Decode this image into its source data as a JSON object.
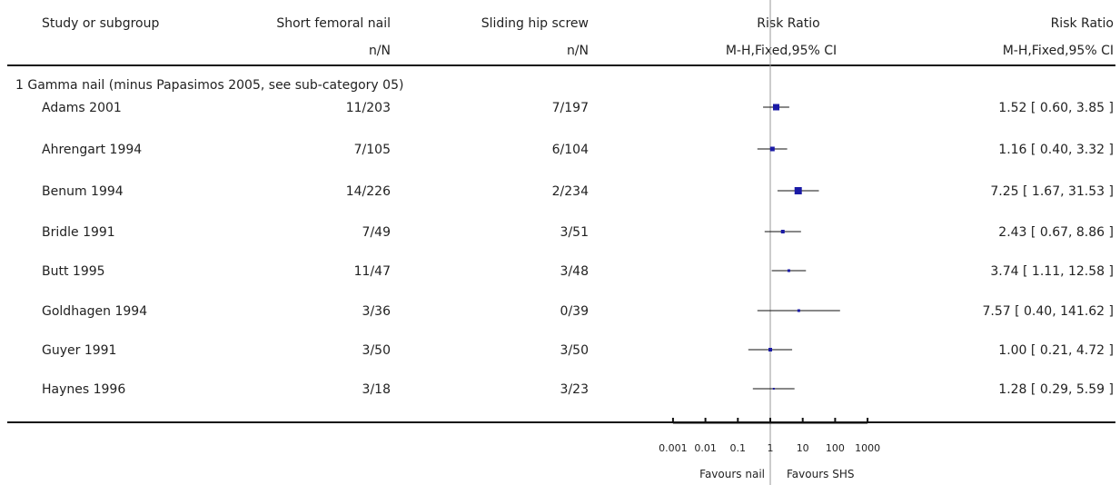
{
  "header": {
    "study": "Study or subgroup",
    "col1": "Short femoral nail",
    "col2": "Sliding hip screw",
    "col1_sub": "n/N",
    "col2_sub": "n/N",
    "plot_title": "Risk Ratio",
    "plot_sub": "M-H,Fixed,95% CI",
    "rr_title": "Risk Ratio",
    "rr_sub": "M-H,Fixed,95% CI"
  },
  "subgroup": "1 Gamma nail (minus Papasimos 2005, see sub-category 05)",
  "studies": [
    {
      "name": "Adams 2001",
      "n1": "11/203",
      "n2": "7/197",
      "rr_text": "1.52 [ 0.60, 3.85 ]"
    },
    {
      "name": "Ahrengart 1994",
      "n1": "7/105",
      "n2": "6/104",
      "rr_text": "1.16 [ 0.40, 3.32 ]"
    },
    {
      "name": "Benum 1994",
      "n1": "14/226",
      "n2": "2/234",
      "rr_text": "7.25 [ 1.67, 31.53 ]"
    },
    {
      "name": "Bridle 1991",
      "n1": "7/49",
      "n2": "3/51",
      "rr_text": "2.43 [ 0.67, 8.86 ]"
    },
    {
      "name": "Butt 1995",
      "n1": "11/47",
      "n2": "3/48",
      "rr_text": "3.74 [ 1.11, 12.58 ]"
    },
    {
      "name": "Goldhagen 1994",
      "n1": "3/36",
      "n2": "0/39",
      "rr_text": "7.57 [ 0.40, 141.62 ]"
    },
    {
      "name": "Guyer 1991",
      "n1": "3/50",
      "n2": "3/50",
      "rr_text": "1.00 [ 0.21, 4.72 ]"
    },
    {
      "name": "Haynes 1996",
      "n1": "3/18",
      "n2": "3/23",
      "rr_text": "1.28 [ 0.29, 5.59 ]"
    }
  ],
  "axis": {
    "ticks": [
      0.001,
      0.01,
      0.1,
      1,
      10,
      100,
      1000
    ],
    "tick_labels": [
      "0.001",
      "0.01",
      "0.1",
      "1",
      "10",
      "100",
      "1000"
    ],
    "favours_left": "Favours nail",
    "favours_right": "Favours SHS"
  },
  "chart_data": {
    "type": "scatter",
    "title": "Risk Ratio",
    "xlabel": "M-H,Fixed,95% CI",
    "x_scale": "log",
    "xlim": [
      0.001,
      1000
    ],
    "categories": [
      "Adams 2001",
      "Ahrengart 1994",
      "Benum 1994",
      "Bridle 1991",
      "Butt 1995",
      "Goldhagen 1994",
      "Guyer 1991",
      "Haynes 1996"
    ],
    "rr": [
      1.52,
      1.16,
      7.25,
      2.43,
      3.74,
      7.57,
      1.0,
      1.28
    ],
    "ci_low": [
      0.6,
      0.4,
      1.67,
      0.67,
      1.11,
      0.4,
      0.21,
      0.29
    ],
    "ci_high": [
      3.85,
      3.32,
      31.53,
      8.86,
      12.58,
      141.62,
      4.72,
      5.59
    ],
    "marker_color": "#1a1aa6",
    "line_color": "#111111",
    "null_line_color": "#999999"
  }
}
